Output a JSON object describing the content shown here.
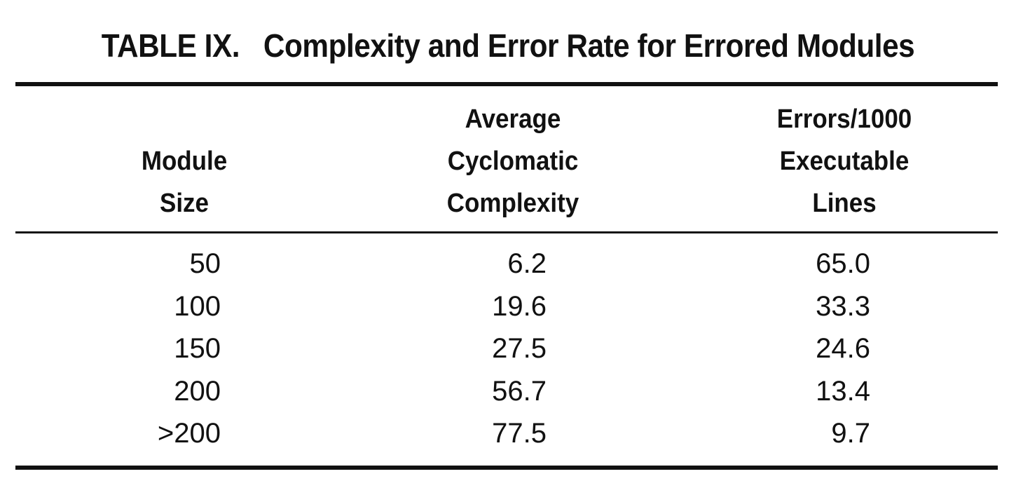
{
  "table": {
    "title": "TABLE IX.   Complexity and Error Rate for Errored Modules",
    "headers": {
      "module_size": [
        "Module",
        "Size"
      ],
      "cyclomatic": [
        "Average",
        "Cyclomatic",
        "Complexity"
      ],
      "errors": [
        "Errors/1000",
        "Executable",
        "Lines"
      ]
    },
    "rows": [
      {
        "size": "50",
        "complexity": "6.2",
        "errors": "65.0"
      },
      {
        "size": "100",
        "complexity": "19.6",
        "errors": "33.3"
      },
      {
        "size": "150",
        "complexity": "27.5",
        "errors": "24.6"
      },
      {
        "size": "200",
        "complexity": "56.7",
        "errors": "13.4"
      },
      {
        "size": ">200",
        "complexity": "77.5",
        "errors": "9.7"
      }
    ]
  }
}
